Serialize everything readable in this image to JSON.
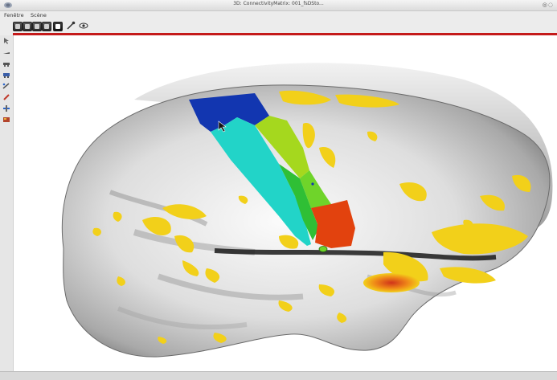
{
  "window": {
    "title": "3D: ConnectivityMatrix: 001_fsDSto..."
  },
  "menu": {
    "items": [
      "Fenêtre",
      "Scène"
    ]
  },
  "toolbar": {
    "buttons": [
      "view-icon",
      "view-icon",
      "view-icon",
      "view-icon",
      "view-icon",
      "tool-icon",
      "eye-icon"
    ]
  },
  "status": {
    "text": ""
  },
  "colors": {
    "accent_red": "#c41a1a",
    "surface_yellow": "#f2d01a",
    "cluster_blue": "#1236b0",
    "cluster_cyan": "#22d4c8",
    "cluster_green": "#6fd42a",
    "cluster_orange": "#e2420e"
  }
}
